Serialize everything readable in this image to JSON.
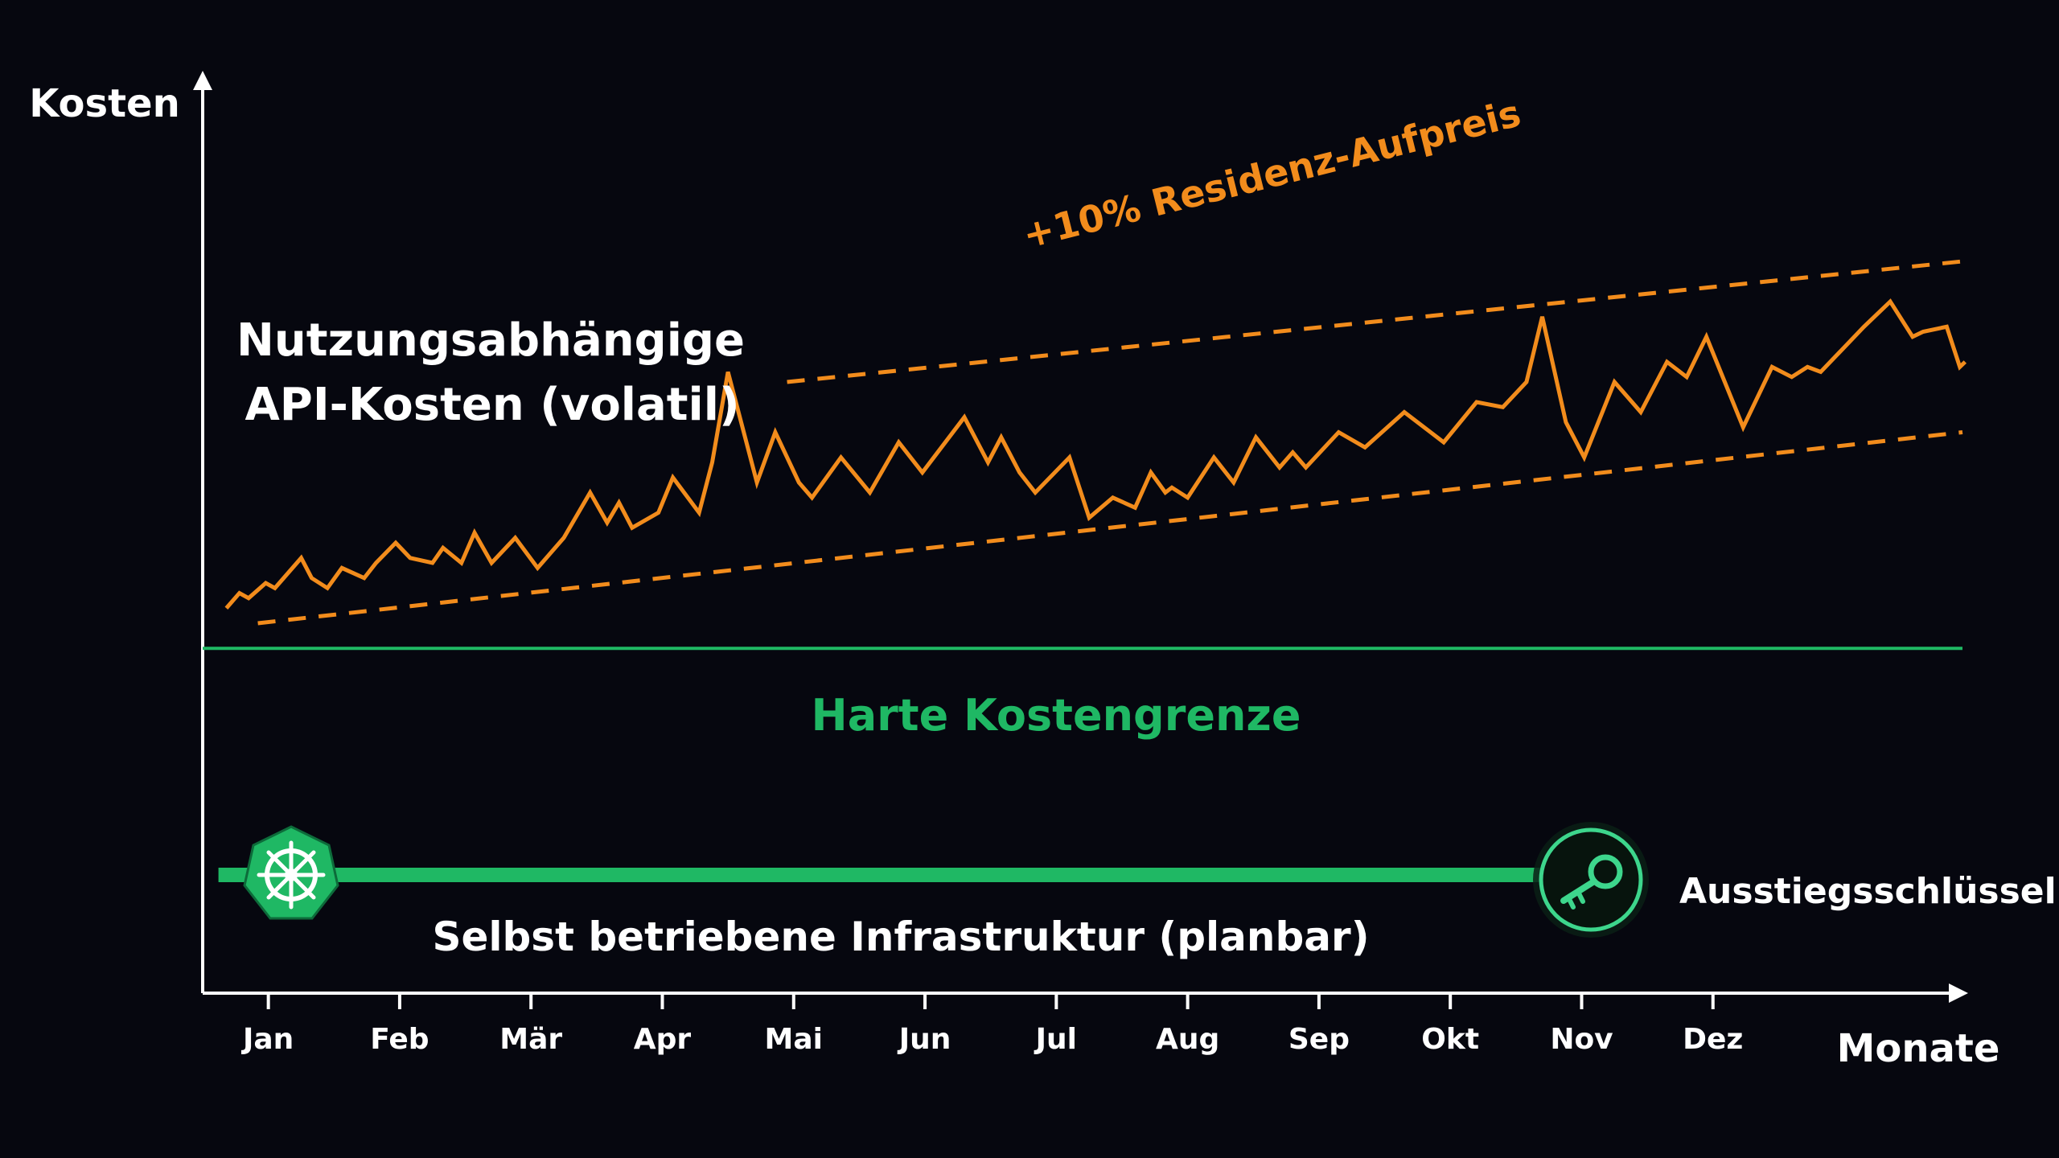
{
  "colors": {
    "background": "#06070f",
    "api_cost": "#f28c1c",
    "limit": "#1fb864",
    "infra": "#1fb864",
    "axis": "#ffffff",
    "exit_key": "#3dd68c"
  },
  "icons": {
    "start": "kubernetes-helm-icon",
    "end": "key-icon"
  },
  "chart_data": {
    "type": "line",
    "ylabel": "Kosten",
    "xlabel": "Monate",
    "categories": [
      "Jan",
      "Feb",
      "Mär",
      "Apr",
      "Mai",
      "Jun",
      "Jul",
      "Aug",
      "Sep",
      "Okt",
      "Nov",
      "Dez"
    ],
    "xlim": [
      0.5,
      13.9
    ],
    "ylim": [
      0,
      100
    ],
    "grid": false,
    "series": [
      {
        "name": "Nutzungsabhängige API-Kosten (volatil)",
        "style": "solid",
        "color": "#f28c1c",
        "x": [
          0.68,
          0.78,
          0.85,
          0.98,
          1.05,
          1.25,
          1.33,
          1.45,
          1.56,
          1.73,
          1.82,
          1.97,
          2.08,
          2.25,
          2.33,
          2.47,
          2.57,
          2.7,
          2.88,
          3.05,
          3.25,
          3.45,
          3.58,
          3.67,
          3.77,
          3.97,
          4.08,
          4.28,
          4.38,
          4.5,
          4.72,
          4.86,
          5.04,
          5.14,
          5.36,
          5.58,
          5.8,
          5.98,
          6.3,
          6.48,
          6.58,
          6.72,
          6.84,
          7.1,
          7.25,
          7.43,
          7.6,
          7.72,
          7.83,
          7.88,
          8.0,
          8.2,
          8.35,
          8.52,
          8.7,
          8.8,
          8.9,
          9.15,
          9.35,
          9.65,
          9.95,
          10.2,
          10.4,
          10.58,
          10.7,
          10.88,
          11.02,
          11.25,
          11.45,
          11.65,
          11.8,
          11.95,
          12.23,
          12.45,
          12.6,
          12.72,
          12.82,
          13.15,
          13.35,
          13.52,
          13.6,
          13.78,
          13.88,
          13.92
        ],
        "y": [
          3,
          6,
          5,
          8,
          7,
          13,
          9,
          7,
          11,
          9,
          12,
          16,
          13,
          12,
          15,
          12,
          18,
          12,
          17,
          11,
          17,
          26,
          20,
          24,
          19,
          22,
          29,
          22,
          32,
          50,
          28,
          38,
          28,
          25,
          33,
          26,
          36,
          30,
          41,
          32,
          37,
          30,
          26,
          33,
          21,
          25,
          23,
          30,
          26,
          27,
          25,
          33,
          28,
          37,
          31,
          34,
          31,
          38,
          35,
          42,
          36,
          44,
          43,
          48,
          61,
          40,
          33,
          48,
          42,
          52,
          49,
          57,
          39,
          51,
          49,
          51,
          50,
          59,
          64,
          57,
          58,
          59,
          51,
          52
        ]
      },
      {
        "name": "",
        "style": "dashed",
        "color": "#f28c1c",
        "x": [
          0.92,
          13.9
        ],
        "y": [
          0,
          38
        ]
      },
      {
        "name": "",
        "style": "dashed",
        "color": "#f28c1c",
        "x": [
          4.95,
          13.9
        ],
        "y": [
          48,
          72
        ]
      },
      {
        "name": "Harte Kostengrenze",
        "style": "solid",
        "color": "#1fb864",
        "x": [
          0.5,
          13.9
        ],
        "y": [
          -5,
          -5
        ]
      }
    ],
    "annotations": {
      "api_label_line1": "Nutzungsabhängige",
      "api_label_line2": "API-Kosten (volatil)",
      "band_label": "+10% Residenz-Aufpreis",
      "limit_label": "Harte Kostengrenze",
      "infra_label": "Selbst betriebene Infrastruktur (planbar)",
      "exit_label": "Ausstiegsschlüssel"
    },
    "infra_bar": {
      "x_start": 0.62,
      "x_end": 11.08
    }
  }
}
